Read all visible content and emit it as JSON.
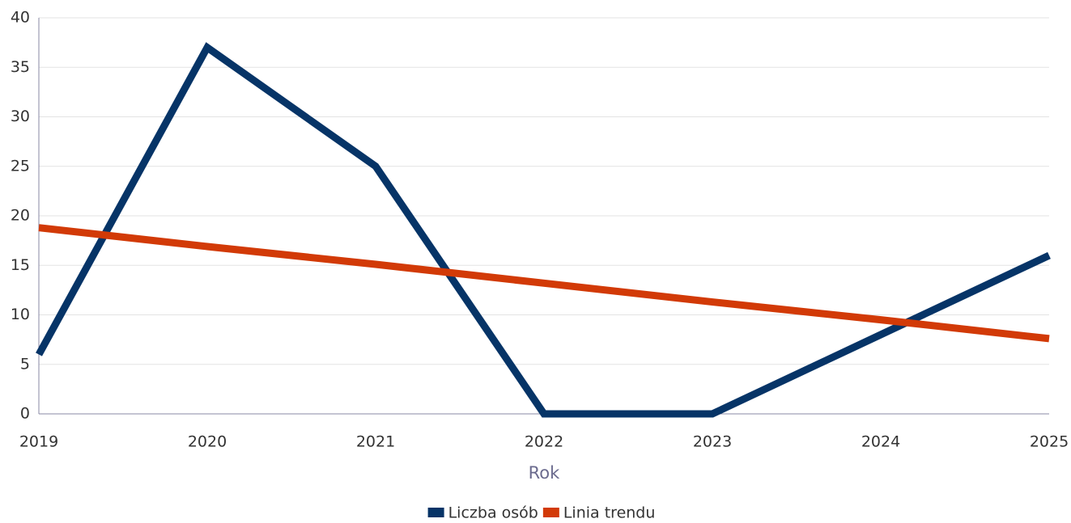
{
  "chart_data": {
    "type": "line",
    "x": [
      2019,
      2020,
      2021,
      2022,
      2023,
      2024,
      2025
    ],
    "series": [
      {
        "name": "Liczba osób",
        "color": "#063467",
        "values": [
          6,
          37,
          25,
          0,
          0,
          8,
          16
        ]
      },
      {
        "name": "Linia trendu",
        "color": "#d23a07",
        "values": [
          18.8,
          16.9,
          15.1,
          13.2,
          11.3,
          9.5,
          7.6
        ]
      }
    ],
    "xlabel": "Rok",
    "xlim": [
      2019,
      2025
    ],
    "xticks": [
      2019,
      2020,
      2021,
      2022,
      2023,
      2024,
      2025
    ],
    "ylim": [
      0,
      40
    ],
    "yticks": [
      0,
      5,
      10,
      15,
      20,
      25,
      30,
      35,
      40
    ],
    "grid": true,
    "legend": "bottom"
  }
}
